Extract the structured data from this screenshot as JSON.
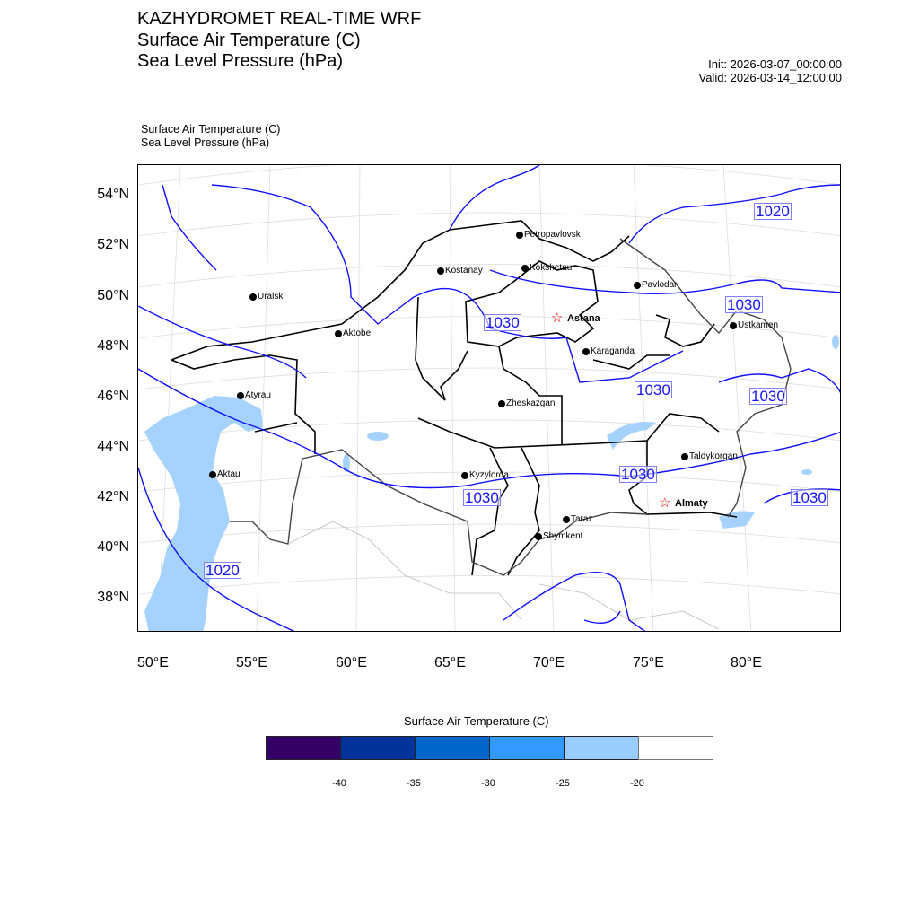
{
  "title": {
    "line1": "KAZHYDROMET REAL-TIME WRF",
    "line2": "Surface Air Temperature  (C)",
    "line3": "Sea Level Pressure  (hPa)",
    "init": "Init: 2026-03-07_00:00:00",
    "valid": "Valid: 2026-03-14_12:00:00"
  },
  "subtitle": {
    "line1": "Surface Air Temperature   (C)",
    "line2": "Sea Level Pressure   (hPa)"
  },
  "axes": {
    "lat_ticks": [
      "54°N",
      "52°N",
      "50°N",
      "48°N",
      "46°N",
      "44°N",
      "42°N",
      "40°N",
      "38°N"
    ],
    "lon_ticks": [
      "50°E",
      "55°E",
      "60°E",
      "65°E",
      "70°E",
      "75°E",
      "80°E"
    ]
  },
  "cities": [
    {
      "name": "Petropavlovsk",
      "capital": false
    },
    {
      "name": "Kostanay",
      "capital": false
    },
    {
      "name": "Kokshetau",
      "capital": false
    },
    {
      "name": "Pavlodar",
      "capital": false
    },
    {
      "name": "Uralsk",
      "capital": false
    },
    {
      "name": "Aktobe",
      "capital": false
    },
    {
      "name": "Astana",
      "capital": true
    },
    {
      "name": "Karaganda",
      "capital": false
    },
    {
      "name": "Ustkamen",
      "capital": false
    },
    {
      "name": "Atyrau",
      "capital": false
    },
    {
      "name": "Zheskazgan",
      "capital": false
    },
    {
      "name": "Aktau",
      "capital": false
    },
    {
      "name": "Kyzylorda",
      "capital": false
    },
    {
      "name": "Taldykorgan",
      "capital": false
    },
    {
      "name": "Almaty",
      "capital": true
    },
    {
      "name": "Taraz",
      "capital": false
    },
    {
      "name": "Shymkent",
      "capital": false
    }
  ],
  "contour_labels": [
    "1020",
    "1030",
    "1030",
    "1030",
    "1030",
    "1030",
    "1030",
    "1030",
    "1020"
  ],
  "colorbar": {
    "title": "Surface Air Temperature (C)",
    "colors": [
      "#330066",
      "#003399",
      "#0066cc",
      "#3399ff",
      "#99ccff",
      "#ffffff"
    ],
    "labels": [
      "-40",
      "-35",
      "-30",
      "-25",
      "-20"
    ]
  }
}
